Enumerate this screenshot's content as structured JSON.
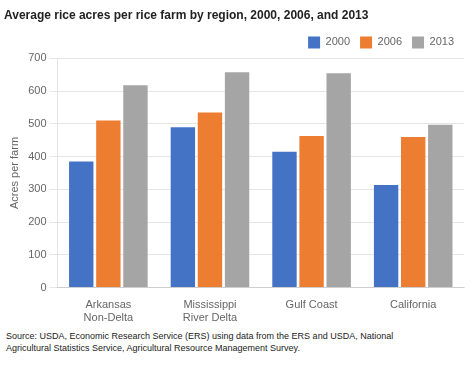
{
  "chart_data": {
    "type": "bar",
    "title": "Average rice acres per rice farm by region, 2000, 2006, and 2013",
    "ylabel": "Acres per farm",
    "categories": [
      "Arkansas\nNon-Delta",
      "Mississippi\nRiver Delta",
      "Gulf Coast",
      "California"
    ],
    "series": [
      {
        "name": "2000",
        "color": "#4472c4",
        "values": [
          385,
          490,
          415,
          313
        ]
      },
      {
        "name": "2006",
        "color": "#ed7d31",
        "values": [
          510,
          535,
          463,
          460
        ]
      },
      {
        "name": "2013",
        "color": "#a5a5a5",
        "values": [
          618,
          658,
          655,
          497
        ]
      }
    ],
    "ylim": [
      0,
      700
    ],
    "yticks": [
      0,
      100,
      200,
      300,
      400,
      500,
      600,
      700
    ],
    "grid": true,
    "legend": "upper right",
    "source": "Source: USDA, Economic Research Service (ERS) using data from the ERS and USDA, National\nAgricultural Statistics Service, Agricultural Resource Management Survey."
  }
}
